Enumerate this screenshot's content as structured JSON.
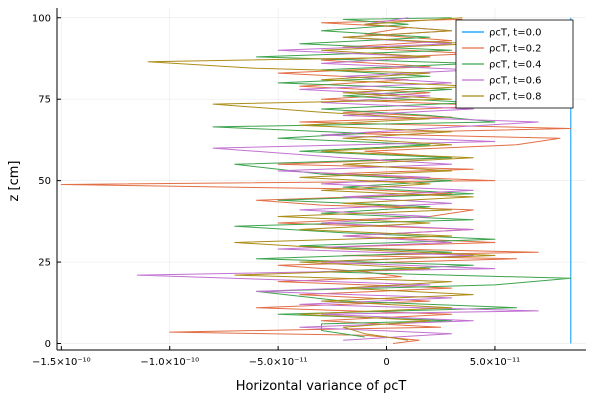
{
  "chart_data": {
    "type": "line",
    "title": "",
    "xlabel": "Horizontal variance of ρcT",
    "ylabel": "z [cm]",
    "xlim": [
      -1.52e-10,
      9.2e-11
    ],
    "ylim": [
      -2,
      103
    ],
    "grid": true,
    "legend_position": "top-right",
    "x_ticks": [
      {
        "value": -1.5e-10,
        "label": "−1.5×10⁻¹⁰"
      },
      {
        "value": -1e-10,
        "label": "−1.0×10⁻¹⁰"
      },
      {
        "value": -5e-11,
        "label": "−5.0×10⁻¹¹"
      },
      {
        "value": 0,
        "label": "0"
      },
      {
        "value": 5e-11,
        "label": "5.0×10⁻¹¹"
      }
    ],
    "y_ticks": [
      {
        "value": 0,
        "label": "0"
      },
      {
        "value": 25,
        "label": "25"
      },
      {
        "value": 50,
        "label": "50"
      },
      {
        "value": 75,
        "label": "75"
      },
      {
        "value": 100,
        "label": "100"
      }
    ],
    "series": [
      {
        "name": "ρcT, t=0.0",
        "color": "#009AF9",
        "points": [
          [
            8.5e-11,
            0
          ],
          [
            8.5e-11,
            100
          ]
        ]
      },
      {
        "name": "ρcT, t=0.2",
        "color": "#E26F46",
        "points": [
          [
            3e-12,
            0
          ],
          [
            1.5e-11,
            1
          ],
          [
            -1e-11,
            2.5
          ],
          [
            -1e-10,
            3.5
          ],
          [
            2.5e-11,
            5
          ],
          [
            -3e-11,
            7
          ],
          [
            3e-11,
            9
          ],
          [
            -6e-11,
            11
          ],
          [
            2e-11,
            13
          ],
          [
            -4e-11,
            15
          ],
          [
            3e-11,
            17
          ],
          [
            -5e-11,
            19
          ],
          [
            7e-12,
            20.5
          ],
          [
            -1e-11,
            22
          ],
          [
            -5e-11,
            24
          ],
          [
            6e-11,
            26
          ],
          [
            -2e-11,
            27
          ],
          [
            7e-11,
            28
          ],
          [
            -3e-11,
            29.5
          ],
          [
            5e-11,
            31
          ],
          [
            -2e-11,
            33
          ],
          [
            4e-11,
            35
          ],
          [
            -5e-11,
            37
          ],
          [
            2e-11,
            39
          ],
          [
            4e-11,
            41
          ],
          [
            -3e-11,
            42.5
          ],
          [
            -6e-11,
            44
          ],
          [
            3e-11,
            46
          ],
          [
            -2e-11,
            47.5
          ],
          [
            -1.5e-10,
            48.8
          ],
          [
            5e-11,
            50
          ],
          [
            -3e-11,
            52
          ],
          [
            4e-11,
            53.5
          ],
          [
            -5e-11,
            55
          ],
          [
            3e-11,
            57
          ],
          [
            -1e-11,
            59
          ],
          [
            6e-11,
            61
          ],
          [
            8e-11,
            63
          ],
          [
            -2e-11,
            64.5
          ],
          [
            8.5e-11,
            66
          ],
          [
            -4e-11,
            68
          ],
          [
            3e-11,
            69.5
          ],
          [
            -2e-11,
            71
          ],
          [
            5e-11,
            73
          ],
          [
            -3e-11,
            75
          ],
          [
            2e-11,
            77
          ],
          [
            -4e-11,
            79
          ],
          [
            1e-11,
            81
          ],
          [
            -5e-11,
            83
          ],
          [
            2e-11,
            85
          ],
          [
            -3e-11,
            87
          ],
          [
            4e-11,
            89
          ],
          [
            -2e-11,
            91
          ],
          [
            3e-11,
            93
          ],
          [
            -1e-11,
            95
          ],
          [
            1e-11,
            97
          ],
          [
            -3e-11,
            98.5
          ],
          [
            3.5e-11,
            99.5
          ]
        ]
      },
      {
        "name": "ρcT, t=0.4",
        "color": "#3EA44E",
        "points": [
          [
            -1e-11,
            2
          ],
          [
            -3e-11,
            4
          ],
          [
            -3e-11,
            6
          ],
          [
            3e-11,
            7
          ],
          [
            -5e-11,
            9
          ],
          [
            6e-11,
            11
          ],
          [
            -2e-11,
            13
          ],
          [
            -6e-11,
            16
          ],
          [
            5e-11,
            18
          ],
          [
            8.5e-11,
            20
          ],
          [
            -3e-11,
            22
          ],
          [
            4e-11,
            24
          ],
          [
            -6e-11,
            26
          ],
          [
            3e-11,
            28
          ],
          [
            -4e-11,
            30
          ],
          [
            5e-11,
            32
          ],
          [
            -2e-11,
            34
          ],
          [
            -7e-11,
            36
          ],
          [
            4e-11,
            38
          ],
          [
            -3e-11,
            40
          ],
          [
            2e-11,
            42
          ],
          [
            -5e-11,
            44
          ],
          [
            4e-11,
            46
          ],
          [
            -2e-11,
            48
          ],
          [
            3e-11,
            50
          ],
          [
            -3e-11,
            52
          ],
          [
            -7e-11,
            55
          ],
          [
            3e-11,
            57
          ],
          [
            -4e-11,
            59
          ],
          [
            2e-11,
            61
          ],
          [
            -5e-11,
            63
          ],
          [
            -1e-11,
            64.5
          ],
          [
            -8e-11,
            66.5
          ],
          [
            5e-11,
            68
          ],
          [
            2e-11,
            70
          ],
          [
            -3e-11,
            72
          ],
          [
            4e-11,
            74
          ],
          [
            -2e-11,
            76
          ],
          [
            3e-11,
            78
          ],
          [
            -5e-11,
            80
          ],
          [
            2e-11,
            82
          ],
          [
            -3e-11,
            84
          ],
          [
            4e-11,
            86
          ],
          [
            -6e-11,
            88
          ],
          [
            3e-11,
            90
          ],
          [
            -4e-11,
            92
          ],
          [
            2e-11,
            94
          ],
          [
            -3e-11,
            96
          ],
          [
            1e-11,
            98
          ],
          [
            -2e-11,
            99.5
          ],
          [
            3e-11,
            100
          ]
        ]
      },
      {
        "name": "ρcT, t=0.6",
        "color": "#C271D2",
        "points": [
          [
            -2e-11,
            1
          ],
          [
            3e-11,
            3
          ],
          [
            -4e-11,
            5
          ],
          [
            4e-11,
            7
          ],
          [
            -3e-11,
            9
          ],
          [
            7e-11,
            10
          ],
          [
            -4e-11,
            12
          ],
          [
            3e-11,
            14
          ],
          [
            -6e-11,
            16
          ],
          [
            2e-11,
            18
          ],
          [
            -1.15e-10,
            21
          ],
          [
            5e-11,
            23
          ],
          [
            -3e-11,
            25
          ],
          [
            4e-11,
            27
          ],
          [
            -5e-11,
            29
          ],
          [
            3e-11,
            31
          ],
          [
            -2e-11,
            33
          ],
          [
            4e-11,
            35
          ],
          [
            -3e-11,
            37
          ],
          [
            2e-11,
            39
          ],
          [
            -4e-11,
            41
          ],
          [
            3e-11,
            43
          ],
          [
            -2e-11,
            45
          ],
          [
            4e-11,
            47
          ],
          [
            -3e-11,
            49
          ],
          [
            2e-11,
            51
          ],
          [
            -5e-11,
            53
          ],
          [
            3e-11,
            55
          ],
          [
            -2e-11,
            57
          ],
          [
            -8e-11,
            60
          ],
          [
            5e-11,
            62
          ],
          [
            -3e-11,
            64
          ],
          [
            2e-11,
            66
          ],
          [
            7e-11,
            68
          ],
          [
            -2e-11,
            70
          ],
          [
            4e-11,
            72
          ],
          [
            -3e-11,
            74
          ],
          [
            2e-11,
            76
          ],
          [
            -4e-11,
            78
          ],
          [
            3e-11,
            80
          ],
          [
            -2e-11,
            82
          ],
          [
            4e-11,
            84
          ],
          [
            -3e-11,
            86
          ],
          [
            2e-11,
            88
          ],
          [
            -5e-11,
            90
          ],
          [
            3e-11,
            92
          ],
          [
            -2e-11,
            94
          ],
          [
            3e-11,
            96
          ],
          [
            -1e-11,
            98
          ],
          [
            1e-11,
            100
          ]
        ]
      },
      {
        "name": "ρcT, t=0.8",
        "color": "#AC8D18",
        "points": [
          [
            1e-11,
            1
          ],
          [
            -1e-11,
            3
          ],
          [
            -2e-11,
            5
          ],
          [
            2e-11,
            7
          ],
          [
            -4e-11,
            9
          ],
          [
            3e-11,
            11
          ],
          [
            -3e-11,
            13
          ],
          [
            4e-11,
            15
          ],
          [
            -2e-11,
            17
          ],
          [
            3e-11,
            19
          ],
          [
            -7e-11,
            21
          ],
          [
            2e-11,
            23
          ],
          [
            -4e-11,
            25
          ],
          [
            5e-11,
            27
          ],
          [
            -2e-11,
            29
          ],
          [
            -7e-11,
            31
          ],
          [
            3e-11,
            33
          ],
          [
            -4e-11,
            35
          ],
          [
            2e-11,
            37
          ],
          [
            -5e-11,
            39
          ],
          [
            3e-11,
            41
          ],
          [
            -2e-11,
            43
          ],
          [
            4e-11,
            45
          ],
          [
            -3e-11,
            47
          ],
          [
            2e-11,
            49
          ],
          [
            -4e-11,
            51
          ],
          [
            3e-11,
            53
          ],
          [
            -2e-11,
            55
          ],
          [
            4e-11,
            57
          ],
          [
            -3e-11,
            59
          ],
          [
            3e-11,
            61
          ],
          [
            -2e-11,
            63
          ],
          [
            3e-11,
            65
          ],
          [
            -4e-11,
            67
          ],
          [
            2e-11,
            69
          ],
          [
            -3e-11,
            71
          ],
          [
            -8e-11,
            73.5
          ],
          [
            3e-11,
            75
          ],
          [
            -2e-11,
            77
          ],
          [
            4e-11,
            79
          ],
          [
            -3e-11,
            81
          ],
          [
            2e-11,
            83
          ],
          [
            -6e-11,
            84.5
          ],
          [
            -1.1e-10,
            86.5
          ],
          [
            2e-11,
            88
          ],
          [
            -3e-11,
            90
          ],
          [
            4e-11,
            92
          ],
          [
            -2e-11,
            94
          ],
          [
            3e-11,
            96
          ],
          [
            -1e-11,
            98
          ],
          [
            3.5e-11,
            100
          ]
        ]
      }
    ]
  }
}
